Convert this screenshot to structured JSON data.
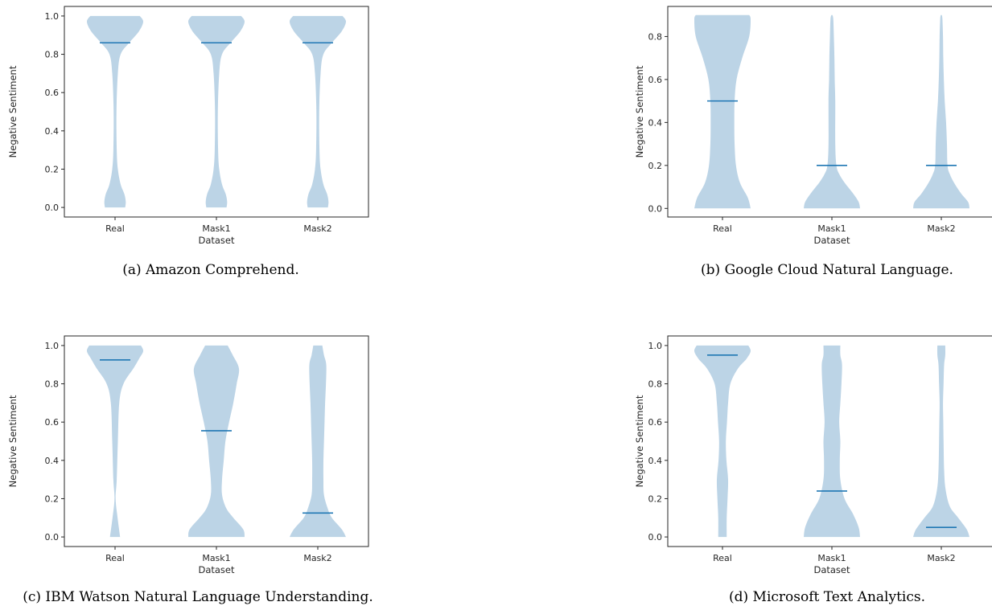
{
  "colors": {
    "violin_fill": "#bcd4e6",
    "median_line": "#1f77b4",
    "axes": "#262626"
  },
  "chart_data": [
    {
      "type": "violin",
      "caption": "(a) Amazon Comprehend.",
      "xlabel": "Dataset",
      "ylabel": "Negative Sentiment",
      "categories": [
        "Real",
        "Mask1",
        "Mask2"
      ],
      "ylim": [
        -0.05,
        1.05
      ],
      "yticks": [
        "0.0",
        "0.2",
        "0.4",
        "0.6",
        "0.8",
        "1.0"
      ],
      "ytick_values": [
        0,
        0.2,
        0.4,
        0.6,
        0.8,
        1.0
      ],
      "violins": [
        {
          "category": "Real",
          "median": 0.86,
          "min": 0.0,
          "max": 1.0,
          "profile": [
            [
              0,
              0.36
            ],
            [
              0.03,
              0.38
            ],
            [
              0.07,
              0.33
            ],
            [
              0.12,
              0.2
            ],
            [
              0.2,
              0.1
            ],
            [
              0.3,
              0.06
            ],
            [
              0.5,
              0.05
            ],
            [
              0.7,
              0.1
            ],
            [
              0.8,
              0.2
            ],
            [
              0.86,
              0.5
            ],
            [
              0.92,
              0.85
            ],
            [
              0.97,
              1.0
            ],
            [
              1.0,
              0.88
            ]
          ]
        },
        {
          "category": "Mask1",
          "median": 0.86,
          "min": 0.0,
          "max": 1.0,
          "profile": [
            [
              0,
              0.36
            ],
            [
              0.03,
              0.38
            ],
            [
              0.07,
              0.33
            ],
            [
              0.12,
              0.2
            ],
            [
              0.2,
              0.1
            ],
            [
              0.3,
              0.06
            ],
            [
              0.5,
              0.05
            ],
            [
              0.7,
              0.1
            ],
            [
              0.8,
              0.2
            ],
            [
              0.86,
              0.5
            ],
            [
              0.92,
              0.85
            ],
            [
              0.97,
              1.0
            ],
            [
              1.0,
              0.88
            ]
          ]
        },
        {
          "category": "Mask2",
          "median": 0.86,
          "min": 0.0,
          "max": 1.0,
          "profile": [
            [
              0,
              0.36
            ],
            [
              0.03,
              0.38
            ],
            [
              0.07,
              0.33
            ],
            [
              0.12,
              0.2
            ],
            [
              0.2,
              0.1
            ],
            [
              0.3,
              0.06
            ],
            [
              0.5,
              0.05
            ],
            [
              0.7,
              0.1
            ],
            [
              0.8,
              0.2
            ],
            [
              0.86,
              0.5
            ],
            [
              0.92,
              0.85
            ],
            [
              0.97,
              1.0
            ],
            [
              1.0,
              0.88
            ]
          ]
        }
      ]
    },
    {
      "type": "violin",
      "caption": "(b) Google Cloud Natural Language.",
      "xlabel": "Dataset",
      "ylabel": "Negative Sentiment",
      "categories": [
        "Real",
        "Mask1",
        "Mask2"
      ],
      "ylim": [
        -0.04,
        0.94
      ],
      "yticks": [
        "0.0",
        "0.2",
        "0.4",
        "0.6",
        "0.8"
      ],
      "ytick_values": [
        0,
        0.2,
        0.4,
        0.6,
        0.8
      ],
      "violins": [
        {
          "category": "Real",
          "median": 0.5,
          "min": 0.0,
          "max": 0.9,
          "profile": [
            [
              0,
              1.0
            ],
            [
              0.05,
              0.9
            ],
            [
              0.12,
              0.62
            ],
            [
              0.2,
              0.48
            ],
            [
              0.3,
              0.43
            ],
            [
              0.4,
              0.42
            ],
            [
              0.5,
              0.43
            ],
            [
              0.6,
              0.5
            ],
            [
              0.7,
              0.7
            ],
            [
              0.8,
              0.95
            ],
            [
              0.88,
              1.0
            ],
            [
              0.9,
              0.95
            ]
          ]
        },
        {
          "category": "Mask1",
          "median": 0.2,
          "min": 0.0,
          "max": 0.9,
          "profile": [
            [
              0,
              1.0
            ],
            [
              0.03,
              0.95
            ],
            [
              0.07,
              0.75
            ],
            [
              0.12,
              0.45
            ],
            [
              0.16,
              0.26
            ],
            [
              0.2,
              0.16
            ],
            [
              0.3,
              0.12
            ],
            [
              0.5,
              0.12
            ],
            [
              0.6,
              0.1
            ],
            [
              0.7,
              0.09
            ],
            [
              0.8,
              0.07
            ],
            [
              0.88,
              0.05
            ],
            [
              0.9,
              0.02
            ]
          ]
        },
        {
          "category": "Mask2",
          "median": 0.2,
          "min": 0.0,
          "max": 0.9,
          "profile": [
            [
              0,
              1.0
            ],
            [
              0.03,
              0.95
            ],
            [
              0.07,
              0.7
            ],
            [
              0.12,
              0.45
            ],
            [
              0.16,
              0.3
            ],
            [
              0.2,
              0.22
            ],
            [
              0.3,
              0.2
            ],
            [
              0.4,
              0.17
            ],
            [
              0.5,
              0.12
            ],
            [
              0.6,
              0.09
            ],
            [
              0.7,
              0.07
            ],
            [
              0.8,
              0.06
            ],
            [
              0.88,
              0.04
            ],
            [
              0.9,
              0.02
            ]
          ]
        }
      ]
    },
    {
      "type": "violin",
      "caption": "(c) IBM Watson Natural Language Understanding.",
      "xlabel": "Dataset",
      "ylabel": "Negative Sentiment",
      "categories": [
        "Real",
        "Mask1",
        "Mask2"
      ],
      "ylim": [
        -0.05,
        1.05
      ],
      "yticks": [
        "0.0",
        "0.2",
        "0.4",
        "0.6",
        "0.8",
        "1.0"
      ],
      "ytick_values": [
        0,
        0.2,
        0.4,
        0.6,
        0.8,
        1.0
      ],
      "violins": [
        {
          "category": "Real",
          "median": 0.925,
          "min": 0.0,
          "max": 1.0,
          "profile": [
            [
              0,
              0.18
            ],
            [
              0.1,
              0.09
            ],
            [
              0.2,
              0.02
            ],
            [
              0.3,
              0.06
            ],
            [
              0.5,
              0.1
            ],
            [
              0.7,
              0.15
            ],
            [
              0.8,
              0.3
            ],
            [
              0.88,
              0.65
            ],
            [
              0.93,
              0.85
            ],
            [
              0.97,
              1.0
            ],
            [
              1.0,
              0.92
            ]
          ]
        },
        {
          "category": "Mask1",
          "median": 0.555,
          "min": 0.0,
          "max": 1.0,
          "profile": [
            [
              0,
              1.0
            ],
            [
              0.04,
              0.95
            ],
            [
              0.1,
              0.6
            ],
            [
              0.15,
              0.35
            ],
            [
              0.22,
              0.2
            ],
            [
              0.3,
              0.2
            ],
            [
              0.4,
              0.26
            ],
            [
              0.5,
              0.32
            ],
            [
              0.6,
              0.45
            ],
            [
              0.7,
              0.6
            ],
            [
              0.8,
              0.72
            ],
            [
              0.88,
              0.8
            ],
            [
              0.95,
              0.58
            ],
            [
              1.0,
              0.4
            ]
          ]
        },
        {
          "category": "Mask2",
          "median": 0.125,
          "min": 0.0,
          "max": 1.0,
          "profile": [
            [
              0,
              1.0
            ],
            [
              0.04,
              0.85
            ],
            [
              0.1,
              0.5
            ],
            [
              0.15,
              0.35
            ],
            [
              0.22,
              0.22
            ],
            [
              0.3,
              0.2
            ],
            [
              0.4,
              0.2
            ],
            [
              0.5,
              0.22
            ],
            [
              0.6,
              0.24
            ],
            [
              0.7,
              0.26
            ],
            [
              0.8,
              0.29
            ],
            [
              0.9,
              0.3
            ],
            [
              0.95,
              0.22
            ],
            [
              1.0,
              0.16
            ]
          ]
        }
      ]
    },
    {
      "type": "violin",
      "caption": "(d) Microsoft Text Analytics.",
      "xlabel": "Dataset",
      "ylabel": "Negative Sentiment",
      "categories": [
        "Real",
        "Mask1",
        "Mask2"
      ],
      "ylim": [
        -0.05,
        1.05
      ],
      "yticks": [
        "0.0",
        "0.2",
        "0.4",
        "0.6",
        "0.8",
        "1.0"
      ],
      "ytick_values": [
        0,
        0.2,
        0.4,
        0.6,
        0.8,
        1.0
      ],
      "violins": [
        {
          "category": "Real",
          "median": 0.95,
          "min": 0.0,
          "max": 1.0,
          "profile": [
            [
              0,
              0.15
            ],
            [
              0.1,
              0.15
            ],
            [
              0.2,
              0.18
            ],
            [
              0.3,
              0.2
            ],
            [
              0.4,
              0.14
            ],
            [
              0.5,
              0.12
            ],
            [
              0.6,
              0.16
            ],
            [
              0.7,
              0.2
            ],
            [
              0.8,
              0.28
            ],
            [
              0.88,
              0.55
            ],
            [
              0.93,
              0.85
            ],
            [
              0.97,
              1.0
            ],
            [
              1.0,
              0.92
            ]
          ]
        },
        {
          "category": "Mask1",
          "median": 0.24,
          "min": 0.0,
          "max": 1.0,
          "profile": [
            [
              0,
              1.0
            ],
            [
              0.05,
              0.95
            ],
            [
              0.12,
              0.75
            ],
            [
              0.2,
              0.45
            ],
            [
              0.3,
              0.3
            ],
            [
              0.4,
              0.28
            ],
            [
              0.5,
              0.3
            ],
            [
              0.6,
              0.26
            ],
            [
              0.7,
              0.3
            ],
            [
              0.8,
              0.34
            ],
            [
              0.9,
              0.36
            ],
            [
              0.95,
              0.3
            ],
            [
              1.0,
              0.3
            ]
          ]
        },
        {
          "category": "Mask2",
          "median": 0.05,
          "min": 0.0,
          "max": 1.0,
          "profile": [
            [
              0,
              1.0
            ],
            [
              0.04,
              0.9
            ],
            [
              0.1,
              0.6
            ],
            [
              0.16,
              0.3
            ],
            [
              0.25,
              0.15
            ],
            [
              0.35,
              0.1
            ],
            [
              0.5,
              0.08
            ],
            [
              0.6,
              0.07
            ],
            [
              0.7,
              0.06
            ],
            [
              0.8,
              0.08
            ],
            [
              0.9,
              0.1
            ],
            [
              0.95,
              0.14
            ],
            [
              1.0,
              0.14
            ]
          ]
        }
      ]
    }
  ]
}
